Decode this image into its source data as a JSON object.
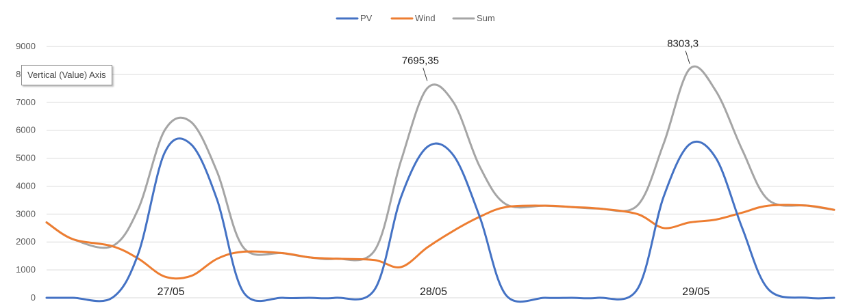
{
  "colors": {
    "PV": "#4472c4",
    "Wind": "#ed7d31",
    "Sum": "#a5a5a5",
    "grid": "#d9d9d9"
  },
  "tooltip": "Vertical (Value) Axis",
  "chart_data": {
    "type": "line",
    "title": "",
    "xlabel": "",
    "ylabel": "",
    "ylim": [
      0,
      9000
    ],
    "yticks": [
      "0",
      "1000",
      "2000",
      "3000",
      "4000",
      "5000",
      "6000",
      "7000",
      "8000",
      "9000"
    ],
    "grid": true,
    "legend_position": "top-center",
    "x": [
      0,
      0.1,
      0.25,
      0.35,
      0.45,
      0.55,
      0.65,
      0.75,
      0.9,
      1.0,
      1.1,
      1.25,
      1.35,
      1.45,
      1.55,
      1.65,
      1.75,
      1.9,
      2.0,
      2.1,
      2.25,
      2.35,
      2.45,
      2.55,
      2.65,
      2.75,
      2.9,
      3.0
    ],
    "day_labels": [
      {
        "x": 0.5,
        "text": "27/05"
      },
      {
        "x": 1.5,
        "text": "28/05"
      },
      {
        "x": 2.5,
        "text": "29/05"
      }
    ],
    "series": [
      {
        "name": "PV",
        "values": [
          0,
          0,
          0,
          1600,
          5200,
          5500,
          3500,
          200,
          0,
          0,
          0,
          300,
          3600,
          5400,
          5100,
          2900,
          100,
          0,
          0,
          0,
          300,
          3600,
          5500,
          5000,
          2500,
          300,
          0,
          0
        ]
      },
      {
        "name": "Wind",
        "values": [
          2700,
          2100,
          1850,
          1400,
          760,
          780,
          1400,
          1650,
          1600,
          1450,
          1400,
          1350,
          1100,
          1800,
          2400,
          2900,
          3250,
          3300,
          3250,
          3200,
          3000,
          2500,
          2700,
          2800,
          3050,
          3300,
          3300,
          3150
        ]
      },
      {
        "name": "Sum",
        "values": [
          2700,
          2100,
          1850,
          3200,
          6000,
          6300,
          4500,
          1800,
          1600,
          1450,
          1400,
          1700,
          4900,
          7500,
          7000,
          4700,
          3350,
          3300,
          3250,
          3200,
          3300,
          5500,
          8200,
          7400,
          5300,
          3500,
          3300,
          3150
        ]
      }
    ],
    "annotations": [
      {
        "x": 1.45,
        "y": 7695.35,
        "text": "7695,35"
      },
      {
        "x": 2.45,
        "y": 8303.3,
        "text": "8303,3"
      }
    ]
  }
}
